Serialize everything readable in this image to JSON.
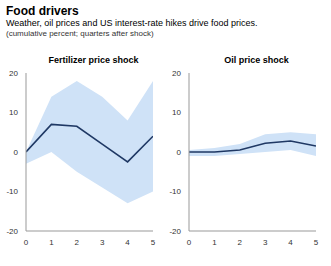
{
  "title": "Food drivers",
  "subtitle": "Weather, oil prices and US interest-rate hikes drive food prices.",
  "note": "(cumulative percent; quarters after shock)",
  "chart_data": [
    {
      "type": "line",
      "title": "Fertilizer price shock",
      "x": [
        0,
        1,
        2,
        3,
        4,
        5
      ],
      "series": [
        {
          "color": "#1f3864",
          "values": [
            0,
            7,
            6.5,
            2,
            -2.5,
            4
          ],
          "lower": [
            -3,
            0,
            -5,
            -9,
            -13,
            -10
          ],
          "upper": [
            0,
            14,
            18,
            14,
            8,
            18
          ]
        }
      ],
      "xlim": [
        0,
        5
      ],
      "xticks": [
        0,
        1,
        2,
        3,
        4,
        5
      ],
      "ylim": [
        -20,
        20
      ],
      "yticks": [
        -20,
        -10,
        0,
        10,
        20
      ],
      "grid": false
    },
    {
      "type": "line",
      "title": "Oil price shock",
      "x": [
        0,
        1,
        2,
        3,
        4,
        5
      ],
      "series": [
        {
          "color": "#1f3864",
          "values": [
            0,
            0,
            0.5,
            2.2,
            2.8,
            1.5
          ],
          "lower": [
            -1,
            -1,
            -0.5,
            0,
            0.5,
            -1
          ],
          "upper": [
            0.5,
            1,
            2,
            4.5,
            5,
            4.5
          ]
        }
      ],
      "xlim": [
        0,
        5
      ],
      "xticks": [
        0,
        1,
        2,
        3,
        4,
        5
      ],
      "ylim": [
        -20,
        20
      ],
      "yticks": [
        -20,
        -10,
        0,
        10,
        20
      ],
      "grid": false
    }
  ]
}
